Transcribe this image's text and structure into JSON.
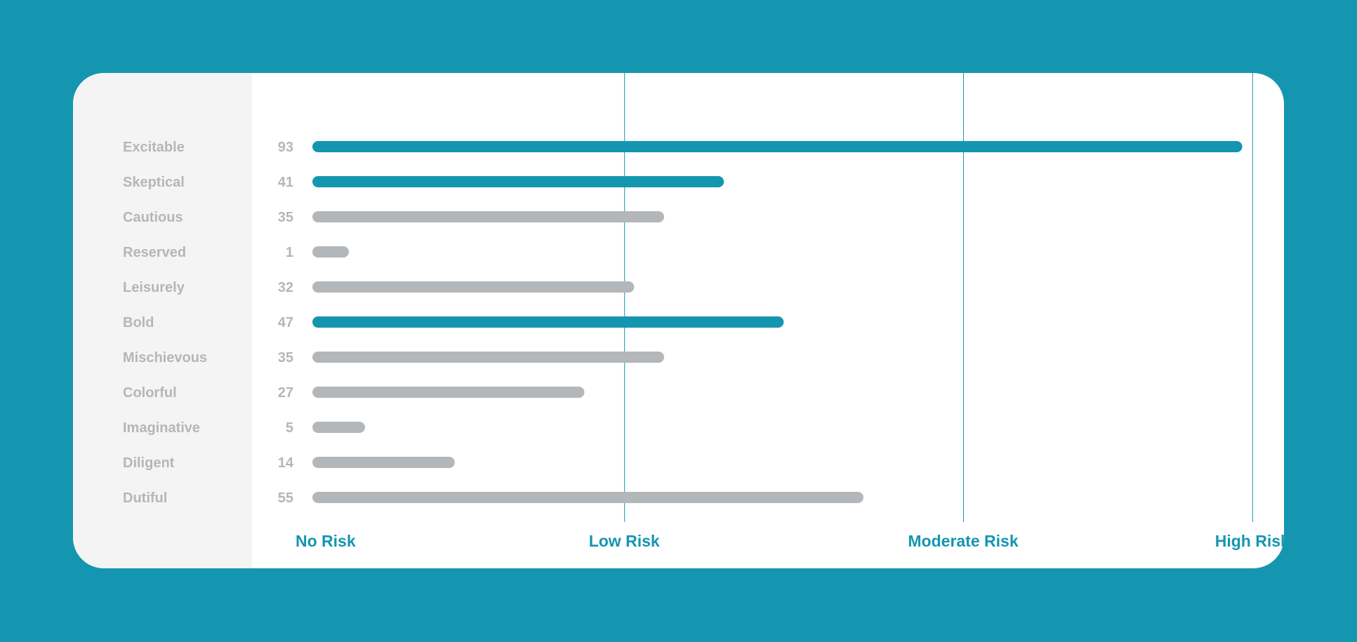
{
  "colors": {
    "background": "#1596b0",
    "highlight": "#1596b0",
    "muted": "#b3b7ba",
    "label_text": "#b3b7ba",
    "zone_line": "#1596b0",
    "zone_text": "#1596b0"
  },
  "chart_data": {
    "type": "bar",
    "orientation": "horizontal",
    "xlim": [
      0,
      100
    ],
    "grid": false,
    "categories": [
      "Excitable",
      "Skeptical",
      "Cautious",
      "Reserved",
      "Leisurely",
      "Bold",
      "Mischievous",
      "Colorful",
      "Imaginative",
      "Diligent",
      "Dutiful"
    ],
    "values": [
      93,
      41,
      35,
      1,
      32,
      47,
      35,
      27,
      5,
      14,
      55
    ],
    "highlighted": [
      true,
      true,
      false,
      false,
      false,
      true,
      false,
      false,
      false,
      false,
      false
    ],
    "zones": [
      {
        "label": "No Risk",
        "value": 0,
        "line": false
      },
      {
        "label": "Low Risk",
        "value": 31,
        "line": true
      },
      {
        "label": "Moderate Risk",
        "value": 65,
        "line": true
      },
      {
        "label": "High Risk",
        "value": 94,
        "line": true
      }
    ]
  }
}
